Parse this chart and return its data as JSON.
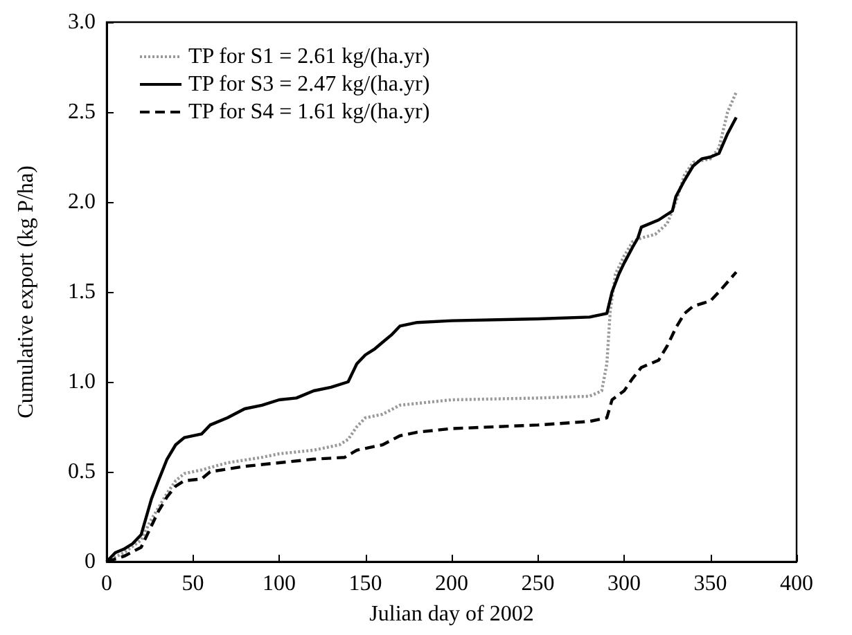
{
  "chart_data": {
    "type": "line",
    "xlabel": "Julian day of 2002",
    "ylabel": "Cumulative export (kg P/ha)",
    "xlim": [
      0,
      400
    ],
    "xticks": [
      0,
      50,
      100,
      150,
      200,
      250,
      300,
      350,
      400
    ],
    "ylim": [
      0,
      3
    ],
    "yticks": [
      0,
      {
        "value": 0.5,
        "label": "0.5"
      },
      {
        "value": 1,
        "label": "1.0"
      },
      {
        "value": 1.5,
        "label": "1.5"
      },
      {
        "value": 2,
        "label": "2.0"
      },
      {
        "value": 2.5,
        "label": "2.5"
      },
      {
        "value": 3,
        "label": "3.0"
      }
    ],
    "grid": false,
    "legend": "top left",
    "marker": "none",
    "series": [
      {
        "name": "TP for S1 = 2.61 kg/(ha.yr)",
        "color": "#999999",
        "line_style": "dotted",
        "x": [
          0,
          10,
          20,
          25,
          30,
          35,
          40,
          45,
          55,
          70,
          90,
          100,
          120,
          135,
          140,
          145,
          150,
          160,
          170,
          180,
          200,
          250,
          280,
          287,
          290,
          292,
          295,
          300,
          305,
          310,
          318,
          325,
          330,
          335,
          340,
          350,
          355,
          360,
          365
        ],
        "values": [
          0,
          0.05,
          0.12,
          0.22,
          0.3,
          0.38,
          0.45,
          0.49,
          0.51,
          0.55,
          0.58,
          0.6,
          0.62,
          0.65,
          0.68,
          0.75,
          0.8,
          0.82,
          0.87,
          0.88,
          0.9,
          0.91,
          0.92,
          0.95,
          1.1,
          1.4,
          1.6,
          1.7,
          1.78,
          1.8,
          1.82,
          1.88,
          2.0,
          2.15,
          2.22,
          2.24,
          2.3,
          2.5,
          2.61
        ]
      },
      {
        "name": "TP for S3 = 2.47 kg/(ha.yr)",
        "color": "#000000",
        "line_style": "solid",
        "x": [
          0,
          5,
          10,
          15,
          20,
          23,
          26,
          30,
          35,
          40,
          45,
          55,
          60,
          70,
          80,
          90,
          100,
          110,
          120,
          130,
          140,
          145,
          150,
          155,
          160,
          165,
          170,
          180,
          200,
          250,
          280,
          290,
          293,
          297,
          300,
          305,
          308,
          310,
          320,
          328,
          330,
          335,
          340,
          345,
          350,
          355,
          360,
          365
        ],
        "values": [
          0,
          0.05,
          0.07,
          0.1,
          0.15,
          0.25,
          0.35,
          0.45,
          0.57,
          0.65,
          0.69,
          0.71,
          0.76,
          0.8,
          0.85,
          0.87,
          0.9,
          0.91,
          0.95,
          0.97,
          1.0,
          1.1,
          1.15,
          1.18,
          1.22,
          1.26,
          1.31,
          1.33,
          1.34,
          1.35,
          1.36,
          1.38,
          1.5,
          1.6,
          1.66,
          1.75,
          1.8,
          1.86,
          1.9,
          1.95,
          2.03,
          2.12,
          2.2,
          2.24,
          2.25,
          2.27,
          2.38,
          2.47
        ]
      },
      {
        "name": "TP for S4 = 1.61 kg/(ha.yr)",
        "color": "#000000",
        "line_style": "dashed",
        "x": [
          0,
          10,
          20,
          25,
          30,
          35,
          40,
          45,
          55,
          60,
          80,
          100,
          120,
          138,
          145,
          160,
          170,
          180,
          200,
          250,
          280,
          290,
          293,
          300,
          305,
          310,
          320,
          325,
          330,
          335,
          340,
          350,
          355,
          365
        ],
        "values": [
          0,
          0.03,
          0.08,
          0.18,
          0.28,
          0.36,
          0.42,
          0.45,
          0.46,
          0.5,
          0.53,
          0.55,
          0.57,
          0.58,
          0.62,
          0.65,
          0.7,
          0.72,
          0.74,
          0.76,
          0.78,
          0.8,
          0.9,
          0.95,
          1.02,
          1.08,
          1.12,
          1.2,
          1.3,
          1.38,
          1.42,
          1.45,
          1.5,
          1.61
        ]
      }
    ]
  }
}
